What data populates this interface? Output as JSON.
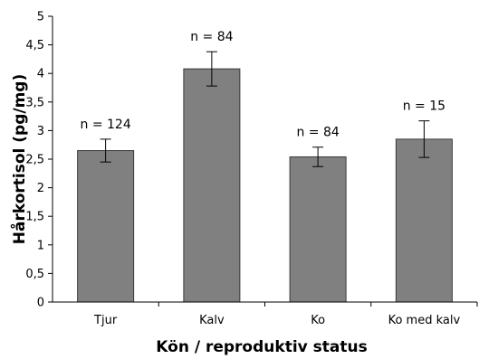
{
  "chart_data": {
    "type": "bar",
    "xlabel": "Kön / reproduktiv status",
    "ylabel": "Hårkortisol (pg/mg)",
    "ylim": [
      0,
      5
    ],
    "yticks": [
      0,
      0.5,
      1,
      1.5,
      2,
      2.5,
      3,
      3.5,
      4,
      4.5,
      5
    ],
    "ytick_labels": [
      "0",
      "0,5",
      "1",
      "1,5",
      "2",
      "2,5",
      "3",
      "3,5",
      "4",
      "4,5",
      "5"
    ],
    "categories": [
      "Tjur",
      "Kalv",
      "Ko",
      "Ko med kalv"
    ],
    "values": [
      2.65,
      4.08,
      2.54,
      2.85
    ],
    "error_low": [
      2.45,
      3.78,
      2.37,
      2.53
    ],
    "error_high": [
      2.85,
      4.38,
      2.71,
      3.17
    ],
    "annotations": [
      "n = 124",
      "n = 84",
      "n = 84",
      "n = 15"
    ],
    "bar_color": "#808080",
    "bar_edge_color": "#3a3a3a",
    "grid": false,
    "legend": "none"
  }
}
